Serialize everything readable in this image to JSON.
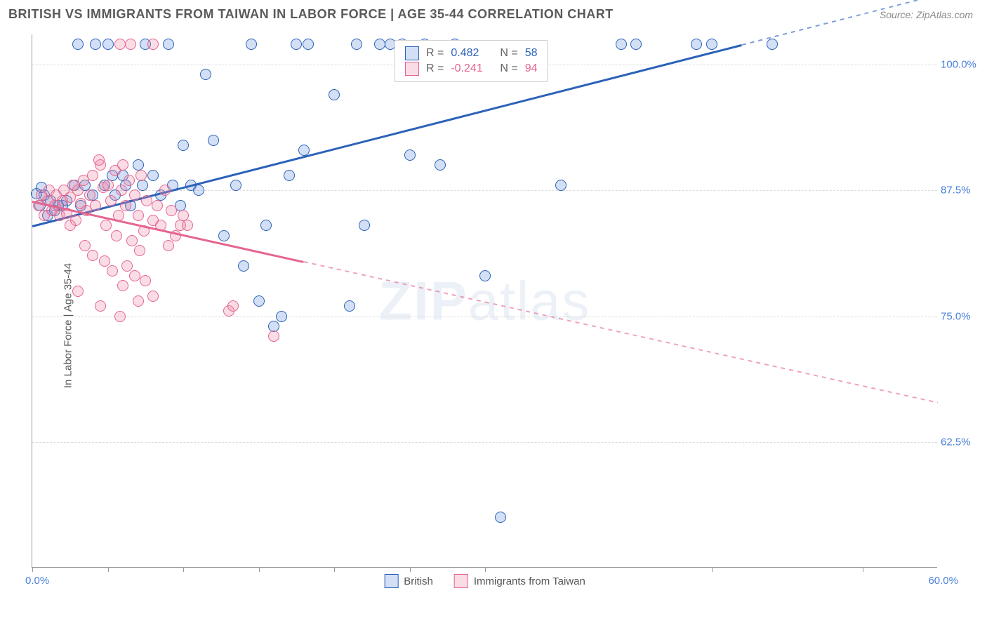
{
  "title": "BRITISH VS IMMIGRANTS FROM TAIWAN IN LABOR FORCE | AGE 35-44 CORRELATION CHART",
  "source": "Source: ZipAtlas.com",
  "ylabel": "In Labor Force | Age 35-44",
  "watermark_bold": "ZIP",
  "watermark_light": "atlas",
  "chart": {
    "type": "scatter-with-trendlines",
    "xlim": [
      0,
      60
    ],
    "ylim": [
      50,
      103
    ],
    "xlim_labels": [
      "0.0%",
      "60.0%"
    ],
    "xtick_positions": [
      0,
      5,
      10,
      15,
      20,
      25,
      30,
      45,
      55
    ],
    "yticks": [
      {
        "v": 100.0,
        "label": "100.0%"
      },
      {
        "v": 87.5,
        "label": "87.5%"
      },
      {
        "v": 75.0,
        "label": "75.0%"
      },
      {
        "v": 62.5,
        "label": "62.5%"
      }
    ],
    "background_color": "#ffffff",
    "grid_color": "#dcdcdc",
    "axis_color": "#999999",
    "tick_label_color": "#4a7fd8",
    "ylabel_color": "#5a5a5a",
    "marker_radius": 8,
    "marker_stroke_width": 1.5,
    "marker_fill_opacity": 0.25,
    "trend_line_width": 2.5,
    "series": [
      {
        "id": "british",
        "label": "British",
        "color": "#4a7fd8",
        "fill": "rgba(74,127,216,0.25)",
        "stroke": "#2c62b8",
        "R": "0.482",
        "N": "58",
        "trend": {
          "x1": 0,
          "y1": 84,
          "x2": 47,
          "y2": 102,
          "solid_until_x": 47,
          "dash_to_x": 60
        },
        "points": [
          [
            0.5,
            86
          ],
          [
            0.8,
            87
          ],
          [
            1,
            85
          ],
          [
            1.2,
            86.5
          ],
          [
            1.5,
            85.5
          ],
          [
            1.7,
            86
          ],
          [
            0.3,
            87.2
          ],
          [
            0.6,
            87.8
          ],
          [
            2,
            86
          ],
          [
            2.3,
            86.5
          ],
          [
            2.8,
            88
          ],
          [
            3,
            102
          ],
          [
            3.2,
            86
          ],
          [
            3.5,
            88
          ],
          [
            4,
            87
          ],
          [
            4.2,
            102
          ],
          [
            4.8,
            88
          ],
          [
            5,
            102
          ],
          [
            5.3,
            89
          ],
          [
            5.5,
            87
          ],
          [
            6,
            89
          ],
          [
            6.2,
            88
          ],
          [
            6.5,
            86
          ],
          [
            7,
            90
          ],
          [
            7.3,
            88
          ],
          [
            7.5,
            102
          ],
          [
            8,
            89
          ],
          [
            8.5,
            87
          ],
          [
            9,
            102
          ],
          [
            9.3,
            88
          ],
          [
            9.8,
            86
          ],
          [
            10,
            92
          ],
          [
            10.5,
            88
          ],
          [
            11,
            87.5
          ],
          [
            11.5,
            99
          ],
          [
            12,
            92.5
          ],
          [
            12.7,
            83
          ],
          [
            13.5,
            88
          ],
          [
            14,
            80
          ],
          [
            14.5,
            102
          ],
          [
            15,
            76.5
          ],
          [
            15.5,
            84
          ],
          [
            16,
            74
          ],
          [
            16.5,
            75
          ],
          [
            17,
            89
          ],
          [
            17.5,
            102
          ],
          [
            18,
            91.5
          ],
          [
            18.3,
            102
          ],
          [
            20,
            97
          ],
          [
            21,
            76
          ],
          [
            21.5,
            102
          ],
          [
            22,
            84
          ],
          [
            23,
            102
          ],
          [
            23.7,
            102
          ],
          [
            24.5,
            102
          ],
          [
            25,
            91
          ],
          [
            26,
            102
          ],
          [
            27,
            90
          ],
          [
            28,
            102
          ],
          [
            30,
            79
          ],
          [
            31,
            55
          ],
          [
            35,
            88
          ],
          [
            39,
            102
          ],
          [
            40,
            102
          ],
          [
            44,
            102
          ],
          [
            45,
            102
          ],
          [
            49,
            102
          ]
        ]
      },
      {
        "id": "taiwan",
        "label": "Immigrants from Taiwan",
        "color": "#f08aa8",
        "fill": "rgba(240,138,168,0.3)",
        "stroke": "#e56590",
        "R": "-0.241",
        "N": "94",
        "trend": {
          "x1": 0,
          "y1": 86.5,
          "x2": 18,
          "y2": 80.5,
          "solid_until_x": 18,
          "dash_to_x": 60
        },
        "points": [
          [
            0.4,
            86
          ],
          [
            0.6,
            87
          ],
          [
            0.8,
            85
          ],
          [
            1,
            86.5
          ],
          [
            1.1,
            87.5
          ],
          [
            1.3,
            85.5
          ],
          [
            1.5,
            86
          ],
          [
            1.6,
            87
          ],
          [
            1.8,
            85
          ],
          [
            2,
            86.5
          ],
          [
            2.1,
            87.5
          ],
          [
            2.3,
            85.2
          ],
          [
            2.5,
            86.8
          ],
          [
            2.7,
            88
          ],
          [
            2.9,
            84.5
          ],
          [
            3,
            87.5
          ],
          [
            3.2,
            86.2
          ],
          [
            3.4,
            88.5
          ],
          [
            3.6,
            85.5
          ],
          [
            3.8,
            87
          ],
          [
            4,
            89
          ],
          [
            4.2,
            86
          ],
          [
            4.5,
            90
          ],
          [
            4.7,
            87.8
          ],
          [
            4.4,
            90.5
          ],
          [
            4.9,
            84
          ],
          [
            5,
            88
          ],
          [
            5.2,
            86.5
          ],
          [
            5.5,
            89.5
          ],
          [
            5.7,
            85
          ],
          [
            5.9,
            87.5
          ],
          [
            6,
            90
          ],
          [
            6.2,
            86
          ],
          [
            6.4,
            88.5
          ],
          [
            6.6,
            82.5
          ],
          [
            6.8,
            87
          ],
          [
            7,
            85
          ],
          [
            7.2,
            89
          ],
          [
            7.4,
            83.5
          ],
          [
            7.6,
            86.5
          ],
          [
            5.8,
            102
          ],
          [
            6.5,
            102
          ],
          [
            8,
            102
          ],
          [
            3.5,
            82
          ],
          [
            4,
            81
          ],
          [
            4.8,
            80.5
          ],
          [
            5.3,
            79.5
          ],
          [
            5.6,
            83
          ],
          [
            6,
            78
          ],
          [
            6.3,
            80
          ],
          [
            6.8,
            79
          ],
          [
            7.1,
            81.5
          ],
          [
            7.5,
            78.5
          ],
          [
            8,
            84.5
          ],
          [
            8.3,
            86
          ],
          [
            8.5,
            84
          ],
          [
            8.8,
            87.5
          ],
          [
            9,
            82
          ],
          [
            9.2,
            85.5
          ],
          [
            9.5,
            83
          ],
          [
            3,
            77.5
          ],
          [
            4.5,
            76
          ],
          [
            5.8,
            75
          ],
          [
            7,
            76.5
          ],
          [
            8,
            77
          ],
          [
            2.5,
            84
          ],
          [
            9.8,
            84
          ],
          [
            10,
            85
          ],
          [
            10.3,
            84
          ],
          [
            13,
            75.5
          ],
          [
            13.3,
            76
          ],
          [
            16,
            73
          ]
        ]
      }
    ],
    "stat_box": {
      "left_pct": 40,
      "top_pct": 1,
      "R_label": "R =",
      "N_label": "N =",
      "label_color": "#666666",
      "bg": "#ffffff",
      "border": "#d0d0d0"
    },
    "legend": {
      "items": [
        {
          "series": "british"
        },
        {
          "series": "taiwan"
        }
      ]
    }
  }
}
